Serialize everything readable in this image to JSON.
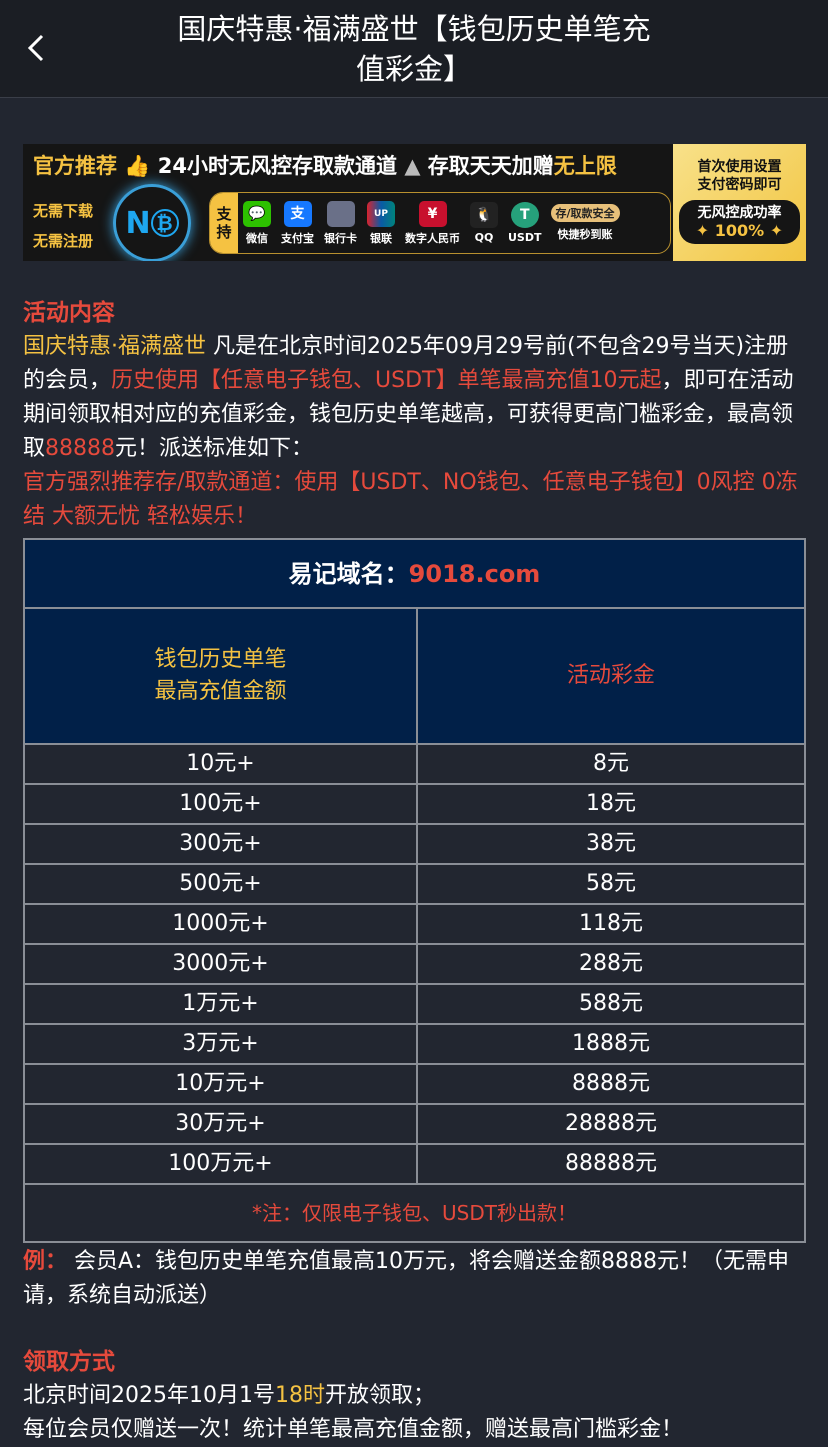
{
  "header": {
    "title": "国庆特惠·福满盛世【钱包历史单笔充值彩金】",
    "back_icon": "chevron-left-icon"
  },
  "banner": {
    "top_gold": "官方推荐",
    "top_white": "24小时无风控存取款通道",
    "top_white2": "存取天天加赠",
    "top_gold2": "无上限",
    "side1": "无需下载",
    "side2": "无需注册",
    "logo": "NO",
    "support": "支持",
    "methods": [
      "微信",
      "支付宝",
      "银行卡",
      "银联",
      "数字人民币",
      "QQ",
      "USDT"
    ],
    "safe1": "存/取款安全",
    "safe2": "快捷秒到账",
    "right1": "首次使用设置",
    "right2": "支付密码即可",
    "rate_label": "无风控成功率",
    "rate_value": "✦ 100% ✦"
  },
  "activity": {
    "heading": "活动内容",
    "p1_gold": "国庆特惠·福满盛世",
    "p1_a": " 凡是在北京时间2025年09月29号前(不包含29号当天)注册的会员，",
    "p1_red": "历史使用【任意电子钱包、USDT】单笔最高充值10元起",
    "p1_b": "，即可在活动期间领取相对应的充值彩金，钱包历史单笔越高，可获得更高门槛彩金，最高领取",
    "p1_red2": "88888",
    "p1_c": "元！派送标准如下：",
    "p2_red": "官方强烈推荐存/取款通道：使用【USDT、NO钱包、任意电子钱包】0风控 0冻结 大额无忧 轻松娱乐！"
  },
  "table": {
    "domain_label": "易记域名：",
    "domain_value": "9018.com",
    "col1_line1": "钱包历史单笔",
    "col1_line2": "最高充值金额",
    "col2": "活动彩金",
    "rows": [
      [
        "10元+",
        "8元"
      ],
      [
        "100元+",
        "18元"
      ],
      [
        "300元+",
        "38元"
      ],
      [
        "500元+",
        "58元"
      ],
      [
        "1000元+",
        "118元"
      ],
      [
        "3000元+",
        "288元"
      ],
      [
        "1万元+",
        "588元"
      ],
      [
        "3万元+",
        "1888元"
      ],
      [
        "10万元+",
        "8888元"
      ],
      [
        "30万元+",
        "28888元"
      ],
      [
        "100万元+",
        "88888元"
      ]
    ],
    "note": "*注：仅限电子钱包、USDT秒出款！"
  },
  "example": {
    "label": "例：",
    "text": " 会员A：钱包历史单笔充值最高10万元，将会赠送金额8888元！（无需申请，系统自动派送）"
  },
  "claim": {
    "heading": "领取方式",
    "l1_a": "北京时间2025年10月1号",
    "l1_gold": "18时",
    "l1_b": "开放领取；",
    "l2": "每位会员仅赠送一次！统计单笔最高充值金额，赠送最高门槛彩金！"
  }
}
